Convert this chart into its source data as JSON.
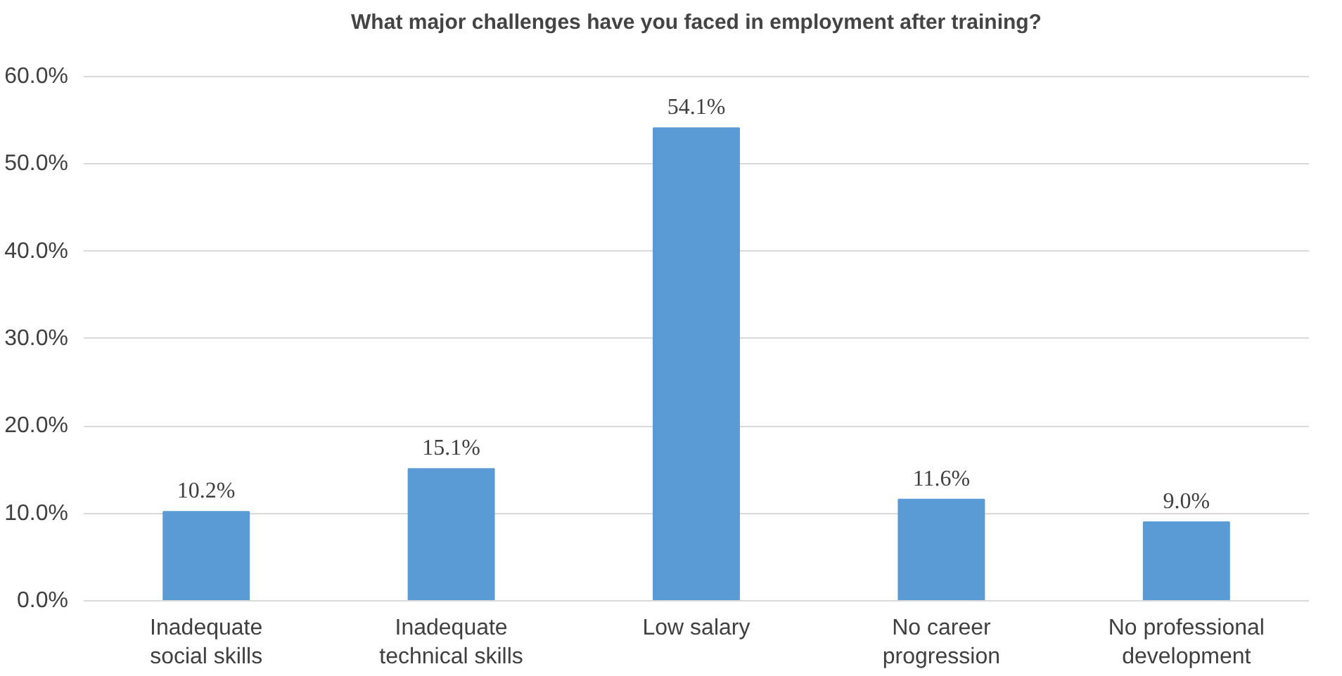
{
  "chart_data": {
    "type": "bar",
    "title": "What major challenges have you faced in employment after training?",
    "categories": [
      "Inadequate social skills",
      "Inadequate technical skills",
      "Low salary",
      "No career progression",
      "No professional development"
    ],
    "values": [
      10.2,
      15.1,
      54.1,
      11.6,
      9.0
    ],
    "value_labels": [
      "10.2%",
      "15.1%",
      "54.1%",
      "11.6%",
      "9.0%"
    ],
    "color": "#5b9bd5",
    "ylim": [
      0,
      60
    ],
    "yticks": [
      {
        "value": 0,
        "label": "0.0%"
      },
      {
        "value": 10,
        "label": "10.0%"
      },
      {
        "value": 20,
        "label": "20.0%"
      },
      {
        "value": 30,
        "label": "30.0%"
      },
      {
        "value": 40,
        "label": "40.0%"
      },
      {
        "value": 50,
        "label": "50.0%"
      },
      {
        "value": 60,
        "label": "60.0%"
      }
    ],
    "grid": "y"
  }
}
